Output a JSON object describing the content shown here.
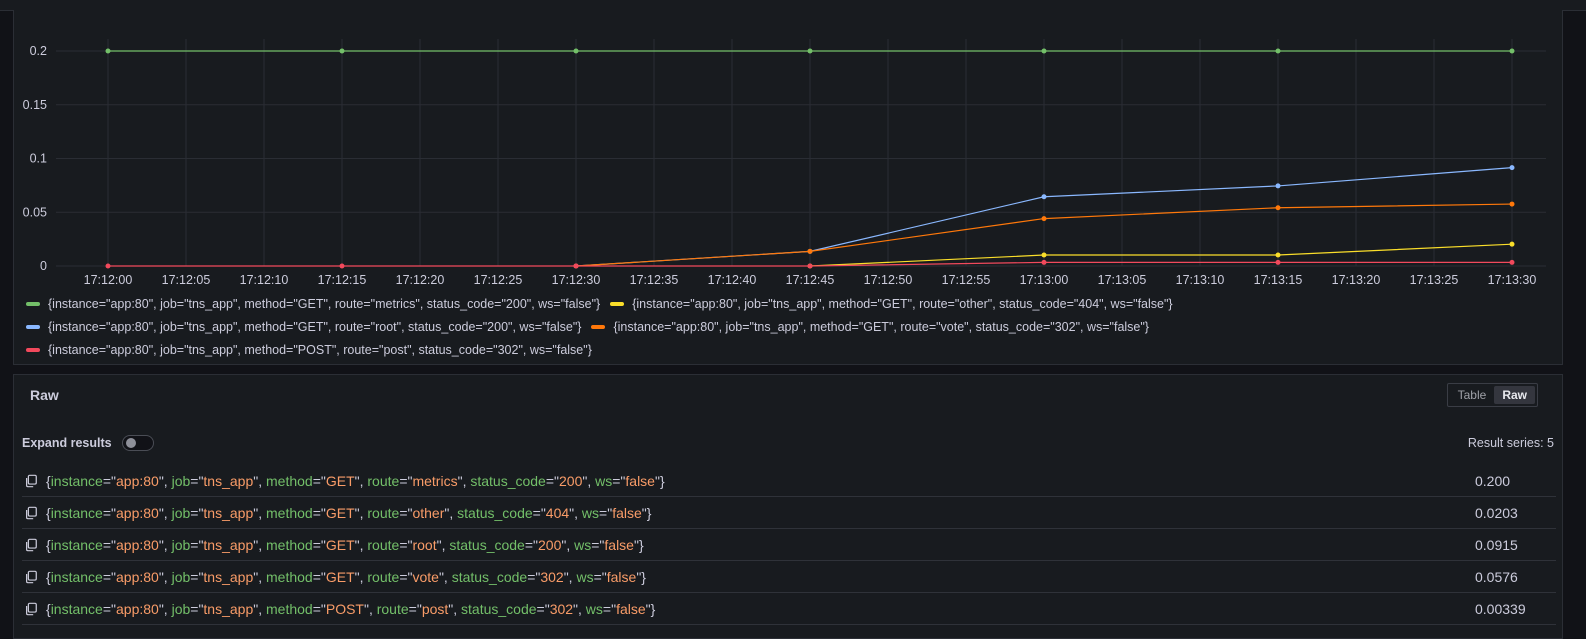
{
  "chart_data": {
    "type": "line",
    "x": [
      "17:12:00",
      "17:12:15",
      "17:12:30",
      "17:12:45",
      "17:13:00",
      "17:13:15",
      "17:13:30"
    ],
    "x_tick_labels": [
      "17:12:00",
      "17:12:05",
      "17:12:10",
      "17:12:15",
      "17:12:20",
      "17:12:25",
      "17:12:30",
      "17:12:35",
      "17:12:40",
      "17:12:45",
      "17:12:50",
      "17:12:55",
      "17:13:00",
      "17:13:05",
      "17:13:10",
      "17:13:15",
      "17:13:20",
      "17:13:25",
      "17:13:30"
    ],
    "y_tick_labels": [
      "0",
      "0.05",
      "0.1",
      "0.15",
      "0.2"
    ],
    "ylim": [
      0,
      0.2
    ],
    "grid": true,
    "legend_position": "bottom",
    "series": [
      {
        "name": "{instance=\"app:80\", job=\"tns_app\", method=\"GET\", route=\"metrics\", status_code=\"200\", ws=\"false\"}",
        "color": "#73bf69",
        "values": [
          0.2,
          0.2,
          0.2,
          0.2,
          0.2,
          0.2,
          0.2
        ]
      },
      {
        "name": "{instance=\"app:80\", job=\"tns_app\", method=\"GET\", route=\"other\", status_code=\"404\", ws=\"false\"}",
        "color": "#fade2a",
        "values": [
          null,
          null,
          null,
          0,
          0.0102,
          0.0102,
          0.0203
        ]
      },
      {
        "name": "{instance=\"app:80\", job=\"tns_app\", method=\"GET\", route=\"root\", status_code=\"200\", ws=\"false\"}",
        "color": "#8ab8ff",
        "values": [
          null,
          null,
          0,
          0.0136,
          0.0644,
          0.0745,
          0.0915
        ]
      },
      {
        "name": "{instance=\"app:80\", job=\"tns_app\", method=\"GET\", route=\"vote\", status_code=\"302\", ws=\"false\"}",
        "color": "#ff780a",
        "values": [
          null,
          null,
          0,
          0.0136,
          0.0441,
          0.0542,
          0.0576
        ]
      },
      {
        "name": "{instance=\"app:80\", job=\"tns_app\", method=\"POST\", route=\"post\", status_code=\"302\", ws=\"false\"}",
        "color": "#f2495c",
        "values": [
          0,
          0,
          0,
          0,
          0.00339,
          0.00339,
          0.00339
        ]
      }
    ]
  },
  "legend_rows": [
    [
      0,
      1
    ],
    [
      2,
      3
    ],
    [
      4
    ]
  ],
  "raw": {
    "title": "Raw",
    "view_toggle": {
      "table_label": "Table",
      "raw_label": "Raw",
      "active": "Raw"
    },
    "expand_label": "Expand results",
    "expand_on": false,
    "result_count": "Result series: 5",
    "rows": [
      {
        "labels": [
          [
            "instance",
            "app:80"
          ],
          [
            "job",
            "tns_app"
          ],
          [
            "method",
            "GET"
          ],
          [
            "route",
            "metrics"
          ],
          [
            "status_code",
            "200"
          ],
          [
            "ws",
            "false"
          ]
        ],
        "value": "0.200"
      },
      {
        "labels": [
          [
            "instance",
            "app:80"
          ],
          [
            "job",
            "tns_app"
          ],
          [
            "method",
            "GET"
          ],
          [
            "route",
            "other"
          ],
          [
            "status_code",
            "404"
          ],
          [
            "ws",
            "false"
          ]
        ],
        "value": "0.0203"
      },
      {
        "labels": [
          [
            "instance",
            "app:80"
          ],
          [
            "job",
            "tns_app"
          ],
          [
            "method",
            "GET"
          ],
          [
            "route",
            "root"
          ],
          [
            "status_code",
            "200"
          ],
          [
            "ws",
            "false"
          ]
        ],
        "value": "0.0915"
      },
      {
        "labels": [
          [
            "instance",
            "app:80"
          ],
          [
            "job",
            "tns_app"
          ],
          [
            "method",
            "GET"
          ],
          [
            "route",
            "vote"
          ],
          [
            "status_code",
            "302"
          ],
          [
            "ws",
            "false"
          ]
        ],
        "value": "0.0576"
      },
      {
        "labels": [
          [
            "instance",
            "app:80"
          ],
          [
            "job",
            "tns_app"
          ],
          [
            "method",
            "POST"
          ],
          [
            "route",
            "post"
          ],
          [
            "status_code",
            "302"
          ],
          [
            "ws",
            "false"
          ]
        ],
        "value": "0.00339"
      }
    ]
  }
}
